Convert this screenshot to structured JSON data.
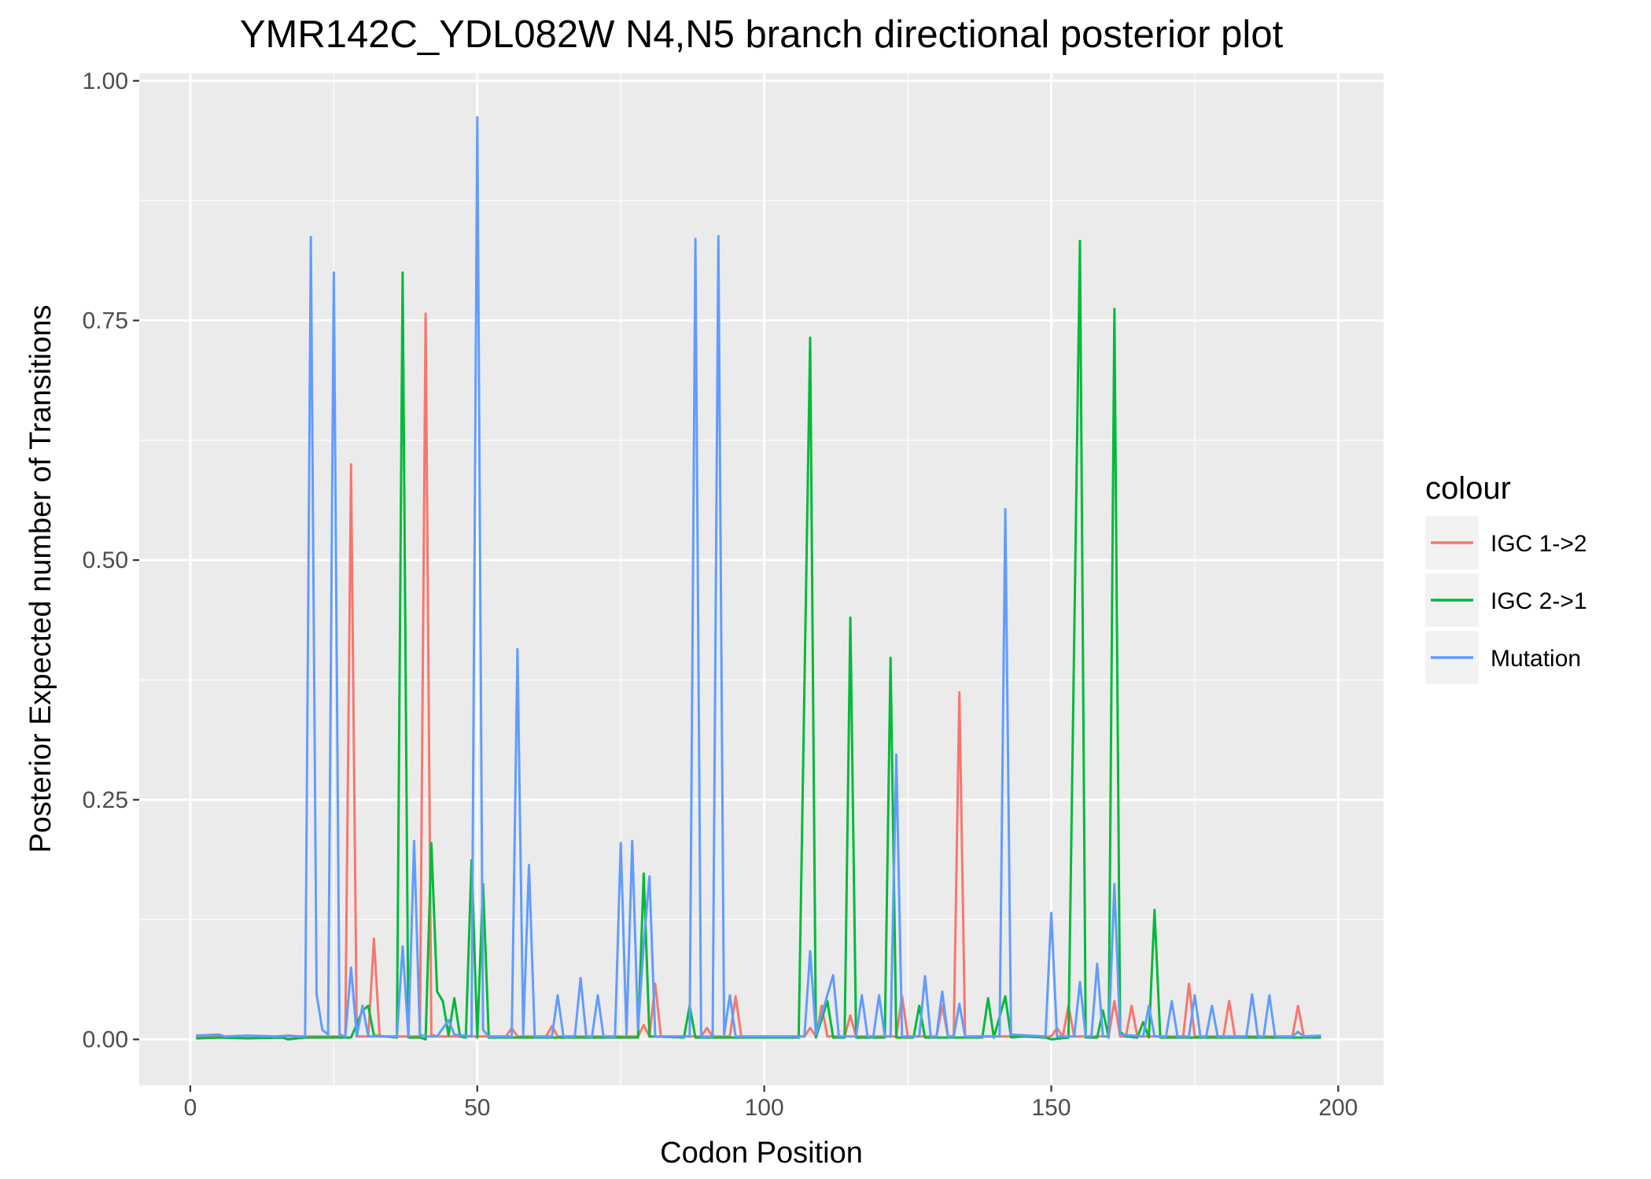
{
  "chart_data": {
    "type": "line",
    "title": "YMR142C_YDL082W N4,N5 branch directional posterior plot",
    "xlabel": "Codon Position",
    "ylabel": "Posterior Expected number of Transitions",
    "xlim": [
      -8.9,
      207.9
    ],
    "ylim": [
      -0.048,
      1.008
    ],
    "x_ticks": [
      0,
      50,
      100,
      150,
      200
    ],
    "x_tick_labels": [
      "0",
      "50",
      "100",
      "150",
      "200"
    ],
    "y_ticks": [
      0,
      0.25,
      0.5,
      0.75,
      1.0
    ],
    "y_tick_labels": [
      "0.00",
      "0.25",
      "0.50",
      "0.75",
      "1.00"
    ],
    "grid": true,
    "legend": {
      "title": "colour",
      "position": "right"
    },
    "series": [
      {
        "name": "IGC 1->2",
        "color": "#F8766D",
        "points": [
          [
            1,
            0.003
          ],
          [
            20,
            0.003
          ],
          [
            27,
            0.003
          ],
          [
            28,
            0.6
          ],
          [
            29,
            0.003
          ],
          [
            31,
            0.003
          ],
          [
            32,
            0.105
          ],
          [
            33,
            0.003
          ],
          [
            40,
            0.003
          ],
          [
            41,
            0.757
          ],
          [
            42,
            0.005
          ],
          [
            43,
            0.003
          ],
          [
            50,
            0.003
          ],
          [
            55,
            0.003
          ],
          [
            56,
            0.012
          ],
          [
            57,
            0.003
          ],
          [
            62,
            0.003
          ],
          [
            63,
            0.014
          ],
          [
            64,
            0.003
          ],
          [
            78,
            0.003
          ],
          [
            79,
            0.015
          ],
          [
            80,
            0.003
          ],
          [
            81,
            0.058
          ],
          [
            82,
            0.003
          ],
          [
            89,
            0.003
          ],
          [
            90,
            0.012
          ],
          [
            91,
            0.003
          ],
          [
            94,
            0.003
          ],
          [
            95,
            0.045
          ],
          [
            96,
            0.003
          ],
          [
            107,
            0.003
          ],
          [
            108,
            0.012
          ],
          [
            109,
            0.003
          ],
          [
            110,
            0.035
          ],
          [
            111,
            0.003
          ],
          [
            114,
            0.003
          ],
          [
            115,
            0.025
          ],
          [
            116,
            0.003
          ],
          [
            123,
            0.003
          ],
          [
            124,
            0.045
          ],
          [
            125,
            0.003
          ],
          [
            130,
            0.003
          ],
          [
            131,
            0.035
          ],
          [
            132,
            0.003
          ],
          [
            133,
            0.003
          ],
          [
            134,
            0.362
          ],
          [
            135,
            0.003
          ],
          [
            150,
            0.003
          ],
          [
            151,
            0.012
          ],
          [
            152,
            0.003
          ],
          [
            153,
            0.035
          ],
          [
            154,
            0.003
          ],
          [
            160,
            0.003
          ],
          [
            161,
            0.04
          ],
          [
            162,
            0.003
          ],
          [
            163,
            0.003
          ],
          [
            164,
            0.035
          ],
          [
            165,
            0.003
          ],
          [
            173,
            0.003
          ],
          [
            174,
            0.058
          ],
          [
            175,
            0.003
          ],
          [
            180,
            0.003
          ],
          [
            181,
            0.04
          ],
          [
            182,
            0.003
          ],
          [
            192,
            0.003
          ],
          [
            193,
            0.035
          ],
          [
            194,
            0.003
          ],
          [
            197,
            0.003
          ]
        ]
      },
      {
        "name": "IGC 2->1",
        "color": "#00BA38",
        "points": [
          [
            1,
            0.001
          ],
          [
            5,
            0.002
          ],
          [
            10,
            0.001
          ],
          [
            16,
            0.002
          ],
          [
            17,
            0.0
          ],
          [
            20,
            0.002
          ],
          [
            28,
            0.002
          ],
          [
            30,
            0.03
          ],
          [
            31,
            0.035
          ],
          [
            32,
            0.004
          ],
          [
            36,
            0.002
          ],
          [
            37,
            0.8
          ],
          [
            38,
            0.002
          ],
          [
            40,
            0.002
          ],
          [
            41,
            0.0
          ],
          [
            42,
            0.205
          ],
          [
            43,
            0.05
          ],
          [
            44,
            0.04
          ],
          [
            45,
            0.004
          ],
          [
            46,
            0.043
          ],
          [
            47,
            0.003
          ],
          [
            48,
            0.002
          ],
          [
            49,
            0.187
          ],
          [
            50,
            0.002
          ],
          [
            51,
            0.162
          ],
          [
            52,
            0.002
          ],
          [
            78,
            0.002
          ],
          [
            79,
            0.173
          ],
          [
            80,
            0.003
          ],
          [
            86,
            0.002
          ],
          [
            87,
            0.035
          ],
          [
            88,
            0.002
          ],
          [
            106,
            0.002
          ],
          [
            108,
            0.732
          ],
          [
            109,
            0.002
          ],
          [
            111,
            0.04
          ],
          [
            112,
            0.002
          ],
          [
            114,
            0.002
          ],
          [
            115,
            0.44
          ],
          [
            116,
            0.002
          ],
          [
            121,
            0.002
          ],
          [
            122,
            0.398
          ],
          [
            123,
            0.002
          ],
          [
            126,
            0.002
          ],
          [
            127,
            0.035
          ],
          [
            128,
            0.002
          ],
          [
            138,
            0.002
          ],
          [
            139,
            0.043
          ],
          [
            140,
            0.002
          ],
          [
            142,
            0.045
          ],
          [
            143,
            0.002
          ],
          [
            145,
            0.003
          ],
          [
            149,
            0.002
          ],
          [
            150,
            0.0
          ],
          [
            153,
            0.002
          ],
          [
            155,
            0.833
          ],
          [
            156,
            0.002
          ],
          [
            158,
            0.002
          ],
          [
            159,
            0.03
          ],
          [
            160,
            0.002
          ],
          [
            161,
            0.762
          ],
          [
            162,
            0.008
          ],
          [
            163,
            0.003
          ],
          [
            165,
            0.002
          ],
          [
            166,
            0.018
          ],
          [
            167,
            0.002
          ],
          [
            168,
            0.135
          ],
          [
            169,
            0.002
          ],
          [
            197,
            0.002
          ]
        ]
      },
      {
        "name": "Mutation",
        "color": "#619CFF",
        "points": [
          [
            1,
            0.004
          ],
          [
            5,
            0.005
          ],
          [
            6,
            0.003
          ],
          [
            10,
            0.004
          ],
          [
            15,
            0.003
          ],
          [
            17,
            0.004
          ],
          [
            19,
            0.003
          ],
          [
            20,
            0.003
          ],
          [
            21,
            0.837
          ],
          [
            22,
            0.047
          ],
          [
            23,
            0.01
          ],
          [
            24,
            0.005
          ],
          [
            25,
            0.8
          ],
          [
            26,
            0.005
          ],
          [
            27,
            0.003
          ],
          [
            28,
            0.075
          ],
          [
            29,
            0.003
          ],
          [
            30,
            0.035
          ],
          [
            31,
            0.003
          ],
          [
            36,
            0.003
          ],
          [
            37,
            0.097
          ],
          [
            38,
            0.003
          ],
          [
            39,
            0.207
          ],
          [
            40,
            0.005
          ],
          [
            41,
            0.003
          ],
          [
            42,
            0.003
          ],
          [
            43,
            0.003
          ],
          [
            45,
            0.02
          ],
          [
            46,
            0.005
          ],
          [
            49,
            0.003
          ],
          [
            50,
            0.962
          ],
          [
            51,
            0.01
          ],
          [
            52,
            0.003
          ],
          [
            56,
            0.003
          ],
          [
            57,
            0.407
          ],
          [
            58,
            0.005
          ],
          [
            59,
            0.182
          ],
          [
            60,
            0.003
          ],
          [
            63,
            0.003
          ],
          [
            64,
            0.046
          ],
          [
            65,
            0.003
          ],
          [
            67,
            0.003
          ],
          [
            68,
            0.064
          ],
          [
            69,
            0.003
          ],
          [
            70,
            0.003
          ],
          [
            71,
            0.046
          ],
          [
            72,
            0.003
          ],
          [
            74,
            0.003
          ],
          [
            75,
            0.205
          ],
          [
            76,
            0.005
          ],
          [
            77,
            0.207
          ],
          [
            78,
            0.01
          ],
          [
            79,
            0.1
          ],
          [
            80,
            0.17
          ],
          [
            81,
            0.003
          ],
          [
            87,
            0.003
          ],
          [
            88,
            0.835
          ],
          [
            89,
            0.003
          ],
          [
            91,
            0.003
          ],
          [
            92,
            0.838
          ],
          [
            93,
            0.005
          ],
          [
            94,
            0.046
          ],
          [
            95,
            0.003
          ],
          [
            107,
            0.003
          ],
          [
            108,
            0.092
          ],
          [
            109,
            0.005
          ],
          [
            112,
            0.067
          ],
          [
            113,
            0.003
          ],
          [
            116,
            0.003
          ],
          [
            117,
            0.046
          ],
          [
            118,
            0.003
          ],
          [
            119,
            0.003
          ],
          [
            120,
            0.046
          ],
          [
            121,
            0.003
          ],
          [
            122,
            0.003
          ],
          [
            123,
            0.297
          ],
          [
            124,
            0.003
          ],
          [
            127,
            0.003
          ],
          [
            128,
            0.066
          ],
          [
            129,
            0.003
          ],
          [
            130,
            0.003
          ],
          [
            131,
            0.05
          ],
          [
            132,
            0.003
          ],
          [
            133,
            0.003
          ],
          [
            134,
            0.037
          ],
          [
            135,
            0.003
          ],
          [
            141,
            0.003
          ],
          [
            142,
            0.553
          ],
          [
            143,
            0.005
          ],
          [
            149,
            0.003
          ],
          [
            150,
            0.132
          ],
          [
            151,
            0.003
          ],
          [
            154,
            0.003
          ],
          [
            155,
            0.06
          ],
          [
            156,
            0.003
          ],
          [
            157,
            0.003
          ],
          [
            158,
            0.079
          ],
          [
            159,
            0.003
          ],
          [
            160,
            0.003
          ],
          [
            161,
            0.162
          ],
          [
            162,
            0.005
          ],
          [
            166,
            0.003
          ],
          [
            167,
            0.035
          ],
          [
            168,
            0.003
          ],
          [
            170,
            0.003
          ],
          [
            171,
            0.04
          ],
          [
            172,
            0.003
          ],
          [
            174,
            0.003
          ],
          [
            175,
            0.046
          ],
          [
            176,
            0.003
          ],
          [
            177,
            0.003
          ],
          [
            178,
            0.035
          ],
          [
            179,
            0.003
          ],
          [
            184,
            0.003
          ],
          [
            185,
            0.047
          ],
          [
            186,
            0.003
          ],
          [
            187,
            0.003
          ],
          [
            188,
            0.046
          ],
          [
            189,
            0.003
          ],
          [
            192,
            0.003
          ],
          [
            193,
            0.008
          ],
          [
            194,
            0.003
          ],
          [
            197,
            0.004
          ]
        ]
      }
    ]
  }
}
